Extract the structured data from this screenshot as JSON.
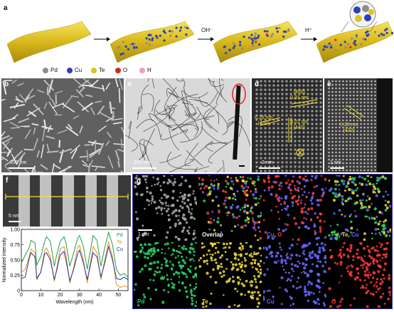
{
  "figure": {
    "panel_labels": {
      "a": "a",
      "b": "b",
      "c": "c",
      "d": "d",
      "e": "e",
      "f": "f",
      "g": "g"
    }
  },
  "panel_a": {
    "arrow1": "",
    "arrow2": "OH⁻",
    "arrow3": "H⁺",
    "legend": [
      {
        "label": "Pd",
        "color": "#8c8c8c"
      },
      {
        "label": "Cu",
        "color": "#2b3fb8"
      },
      {
        "label": "Te",
        "color": "#e0c21a"
      },
      {
        "label": "O",
        "color": "#d22a1f"
      },
      {
        "label": "H",
        "color": "#f0a0b8"
      }
    ]
  },
  "panel_b": {
    "scale": "200 nm"
  },
  "panel_c": {
    "scale": "200 nm"
  },
  "panel_d": {
    "scale": "2 nm",
    "lattice": [
      {
        "spacing": "0.31 nm",
        "plane": "(400)"
      },
      {
        "spacing": "0.26 nm",
        "plane": "(422)"
      },
      {
        "spacing": "0.22 nm",
        "plane": "(440)"
      }
    ]
  },
  "panel_e": {
    "scale": "1 nm",
    "lattice": [
      {
        "spacing": "0.26 nm",
        "plane": "(422)"
      }
    ]
  },
  "panel_f": {
    "scale": "5 nm",
    "chart_data": {
      "type": "line",
      "xlabel": "Wavelength (nm)",
      "ylabel": "Normalized intensity",
      "xlim": [
        0,
        55
      ],
      "ylim": [
        0,
        1.0
      ],
      "xticks": [
        0,
        10,
        20,
        30,
        40,
        50
      ],
      "yticks": [
        0,
        0.25,
        0.5,
        0.75,
        1.0
      ],
      "ytick_labels": [
        "0",
        "0.25",
        "0.50",
        "0.75",
        "1.00"
      ],
      "series": [
        {
          "name": "Pd",
          "color": "#1e9e4a",
          "x": [
            0,
            2,
            4,
            5,
            7,
            8,
            10,
            12,
            13,
            15,
            17,
            18,
            20,
            22,
            23,
            25,
            27,
            29,
            30,
            32,
            34,
            35,
            37,
            39,
            41,
            43,
            45,
            47,
            49,
            51,
            53,
            55
          ],
          "y": [
            0.45,
            0.58,
            0.7,
            0.82,
            0.78,
            0.42,
            0.55,
            0.8,
            0.88,
            0.8,
            0.4,
            0.55,
            0.8,
            0.88,
            0.78,
            0.4,
            0.62,
            0.85,
            0.9,
            0.72,
            0.35,
            0.55,
            0.9,
            0.82,
            0.4,
            0.7,
            0.95,
            0.75,
            0.35,
            0.25,
            0.28,
            0.22
          ]
        },
        {
          "name": "Te",
          "color": "#e8941e",
          "x": [
            0,
            2,
            4,
            5,
            7,
            8,
            10,
            12,
            13,
            15,
            17,
            18,
            20,
            22,
            23,
            25,
            27,
            29,
            30,
            32,
            34,
            35,
            37,
            39,
            41,
            43,
            45,
            47,
            49,
            51,
            53,
            55
          ],
          "y": [
            0.3,
            0.35,
            0.55,
            0.68,
            0.62,
            0.18,
            0.3,
            0.65,
            0.7,
            0.55,
            0.15,
            0.32,
            0.68,
            0.72,
            0.58,
            0.12,
            0.38,
            0.7,
            0.74,
            0.5,
            0.12,
            0.35,
            0.72,
            0.62,
            0.18,
            0.5,
            0.8,
            0.55,
            0.1,
            0.05,
            0.08,
            0.05
          ]
        },
        {
          "name": "Cu",
          "color": "#2a2f8f",
          "x": [
            0,
            2,
            4,
            5,
            7,
            8,
            10,
            12,
            13,
            15,
            17,
            18,
            20,
            22,
            23,
            25,
            27,
            29,
            30,
            32,
            34,
            35,
            37,
            39,
            41,
            43,
            45,
            47,
            49,
            51,
            53,
            55
          ],
          "y": [
            0.2,
            0.22,
            0.52,
            0.62,
            0.55,
            0.2,
            0.3,
            0.6,
            0.62,
            0.5,
            0.18,
            0.3,
            0.58,
            0.64,
            0.5,
            0.16,
            0.35,
            0.6,
            0.66,
            0.45,
            0.18,
            0.32,
            0.62,
            0.55,
            0.22,
            0.45,
            0.72,
            0.5,
            0.2,
            0.18,
            0.22,
            0.18
          ]
        }
      ]
    }
  },
  "panel_g": {
    "scale": "1 nm",
    "tiles": [
      {
        "name": "haadf",
        "label": "",
        "color": "#ffffff"
      },
      {
        "name": "overlap",
        "label": "Overlap",
        "color": "#ffffff"
      },
      {
        "name": "cu-o",
        "label_parts": [
          {
            "t": "Cu",
            "c": "#6a6aff"
          },
          {
            "t": ", ",
            "c": "#ffffff"
          },
          {
            "t": "O",
            "c": "#ff3a3a"
          }
        ]
      },
      {
        "name": "pd-te-cu",
        "label_parts": [
          {
            "t": "Pd",
            "c": "#2bd36b"
          },
          {
            "t": ", ",
            "c": "#ffffff"
          },
          {
            "t": "Te",
            "c": "#f3de3a"
          },
          {
            "t": ", ",
            "c": "#ffffff"
          },
          {
            "t": "Cu",
            "c": "#6a6aff"
          }
        ]
      },
      {
        "name": "pd",
        "label": "Pd",
        "color": "#2bd36b"
      },
      {
        "name": "te",
        "label": "Te",
        "color": "#f3de3a"
      },
      {
        "name": "cu",
        "label": "Cu",
        "color": "#6a6aff"
      },
      {
        "name": "o",
        "label": "O",
        "color": "#ff3a3a"
      }
    ]
  }
}
